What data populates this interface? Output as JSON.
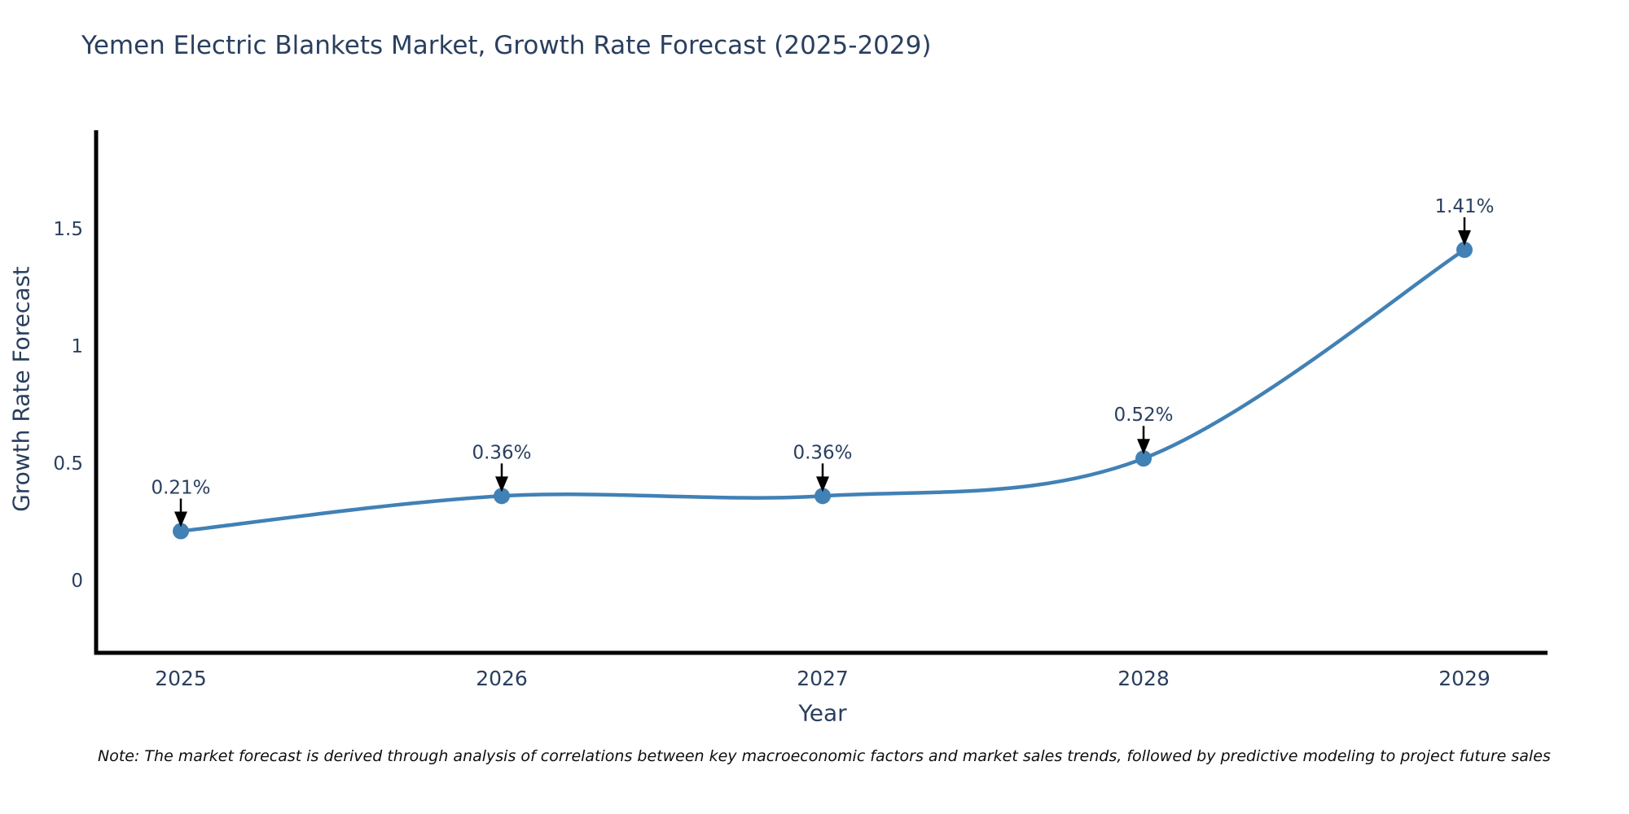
{
  "note": "Note: The market forecast is derived through analysis of correlations between key macroeconomic factors and market sales trends, followed by predictive modeling to project future sales",
  "chart_data": {
    "type": "line",
    "title": "Yemen Electric Blankets Market, Growth Rate Forecast (2025-2029)",
    "categories": [
      "2025",
      "2026",
      "2027",
      "2028",
      "2029"
    ],
    "series": [
      {
        "name": "Growth Rate Forecast",
        "values": [
          0.21,
          0.36,
          0.36,
          0.52,
          1.41
        ]
      }
    ],
    "point_labels": [
      "0.21%",
      "0.36%",
      "0.36%",
      "0.52%",
      "1.41%"
    ],
    "xlabel": "Year",
    "ylabel": "Growth Rate Forecast",
    "y_ticks": [
      0,
      0.5,
      1,
      1.5
    ],
    "ylim": [
      -0.31,
      1.92
    ],
    "grid": false,
    "legend_position": "none",
    "line_shape": "spline",
    "colors": {
      "line": "#4181b5",
      "marker": "#4181b5",
      "arrow": "#000000",
      "axis": "#000000",
      "text": "#2a3f5f",
      "background": "#ffffff"
    }
  }
}
